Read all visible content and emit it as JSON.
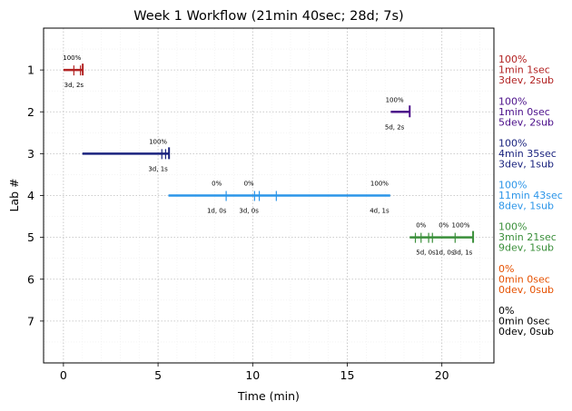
{
  "chart_data": {
    "type": "timeline",
    "title": "Week 1 Workflow (21min 40sec; 28d; 7s)",
    "xlabel": "Time (min)",
    "ylabel": "Lab #",
    "xlim": [
      -1.05,
      22.75
    ],
    "ylim": [
      8.0,
      0.0
    ],
    "x_ticks": [
      0,
      5,
      10,
      15,
      20
    ],
    "x_tick_labels": [
      "0",
      "5",
      "10",
      "15",
      "20"
    ],
    "y_ticks": [
      1,
      2,
      3,
      4,
      5,
      6,
      7
    ],
    "y_tick_labels": [
      "1",
      "2",
      "3",
      "4",
      "5",
      "6",
      "7"
    ],
    "grid": true,
    "labs": [
      {
        "lab": 1,
        "color": "#b22222",
        "start": 0.0,
        "end": 1.02,
        "ticks": [
          0.55,
          0.9,
          1.02
        ],
        "pct_labels": [
          {
            "x": 0.45,
            "text": "100%"
          }
        ],
        "sub_labels": [
          {
            "x": 0.55,
            "text": "3d, 2s"
          }
        ],
        "summary": [
          "100%",
          "1min 1sec",
          "3dev, 2sub"
        ]
      },
      {
        "lab": 2,
        "color": "#4b0f8a",
        "start": 17.3,
        "end": 18.3,
        "ticks": [
          18.3
        ],
        "pct_labels": [
          {
            "x": 17.5,
            "text": "100%"
          }
        ],
        "sub_labels": [
          {
            "x": 17.5,
            "text": "5d, 2s"
          }
        ],
        "summary": [
          "100%",
          "1min 0sec",
          "5dev, 2sub"
        ]
      },
      {
        "lab": 3,
        "color": "#1a237e",
        "start": 1.0,
        "end": 5.58,
        "ticks": [
          5.2,
          5.4,
          5.58
        ],
        "pct_labels": [
          {
            "x": 5.0,
            "text": "100%"
          }
        ],
        "sub_labels": [
          {
            "x": 5.0,
            "text": "3d, 1s"
          }
        ],
        "summary": [
          "100%",
          "4min 35sec",
          "3dev, 1sub"
        ]
      },
      {
        "lab": 4,
        "color": "#2b95e9",
        "start": 5.55,
        "end": 17.27,
        "ticks": [
          8.6,
          10.1,
          10.35,
          11.25
        ],
        "pct_labels": [
          {
            "x": 8.1,
            "text": "0%"
          },
          {
            "x": 9.8,
            "text": "0%"
          },
          {
            "x": 16.7,
            "text": "100%"
          }
        ],
        "sub_labels": [
          {
            "x": 8.1,
            "text": "1d, 0s"
          },
          {
            "x": 9.8,
            "text": "3d, 0s"
          },
          {
            "x": 16.7,
            "text": "4d, 1s"
          }
        ],
        "summary": [
          "100%",
          "11min 43sec",
          "8dev, 1sub"
        ]
      },
      {
        "lab": 5,
        "color": "#3a8f3a",
        "start": 18.3,
        "end": 21.65,
        "ticks": [
          18.6,
          18.9,
          19.3,
          19.5,
          20.7,
          21.65
        ],
        "pct_labels": [
          {
            "x": 18.9,
            "text": "0%"
          },
          {
            "x": 20.1,
            "text": "0%"
          },
          {
            "x": 21.0,
            "text": "100%"
          }
        ],
        "sub_labels": [
          {
            "x": 19.15,
            "text": "5d, 0s"
          },
          {
            "x": 20.15,
            "text": "1d, 0s"
          },
          {
            "x": 21.1,
            "text": "3d, 1s"
          }
        ],
        "summary": [
          "100%",
          "3min 21sec",
          "9dev, 1sub"
        ]
      },
      {
        "lab": 6,
        "color": "#e65100",
        "start": null,
        "end": null,
        "ticks": [],
        "pct_labels": [],
        "sub_labels": [],
        "summary": [
          "0%",
          "0min 0sec",
          "0dev, 0sub"
        ]
      },
      {
        "lab": 7,
        "color": "#000000",
        "start": null,
        "end": null,
        "ticks": [],
        "pct_labels": [],
        "sub_labels": [],
        "summary": [
          "0%",
          "0min 0sec",
          "0dev, 0sub"
        ]
      }
    ]
  }
}
